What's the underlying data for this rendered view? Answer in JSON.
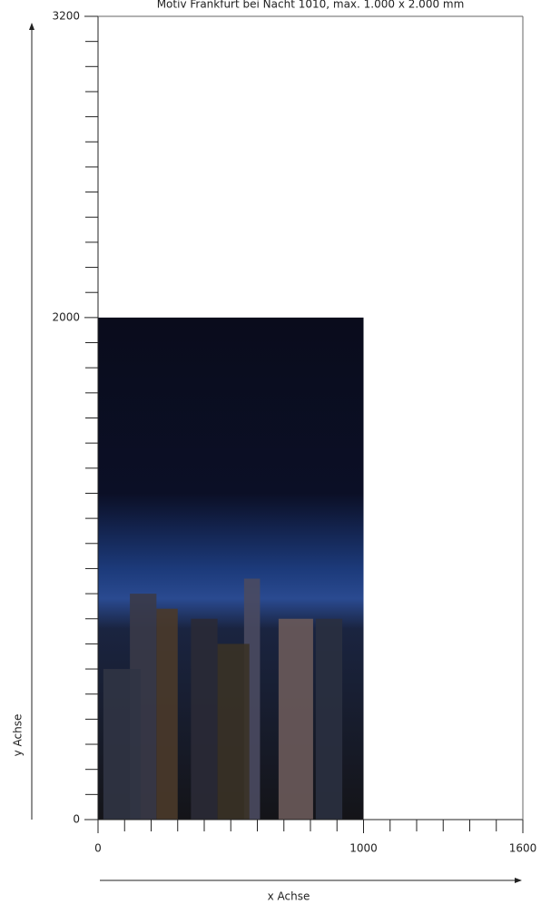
{
  "chart_data": {
    "type": "extent",
    "title": "Motiv Frankfurt bei Nacht 1010, max. 1.000 x 2.000 mm",
    "xlabel": "x Achse",
    "ylabel": "y Achse",
    "width": 1000,
    "height": 2000,
    "xlim": [
      0,
      1600
    ],
    "ylim": [
      0,
      3200
    ],
    "xticks": [
      0,
      1000,
      1600
    ],
    "yticks": [
      0,
      2000,
      3200
    ],
    "xticks_minor": [
      100,
      200,
      300,
      400,
      500,
      600,
      700,
      800,
      900,
      1100,
      1200,
      1300,
      1400,
      1500
    ],
    "yticks_minor": [
      100,
      200,
      300,
      400,
      500,
      600,
      700,
      800,
      900,
      1000,
      1100,
      1200,
      1300,
      1400,
      1500,
      1600,
      1700,
      1800,
      1900,
      2100,
      2200,
      2300,
      2400,
      2500,
      2600,
      2700,
      2800,
      2900,
      3000,
      3100
    ]
  }
}
